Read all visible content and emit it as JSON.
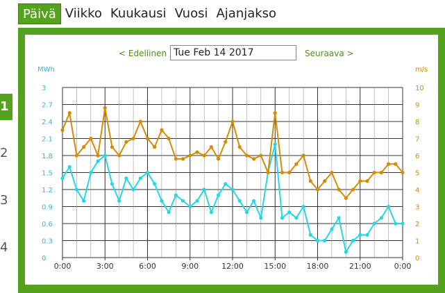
{
  "tabs": [
    {
      "label": "Päivä",
      "active": true
    },
    {
      "label": "Viikko",
      "active": false
    },
    {
      "label": "Kuukausi",
      "active": false
    },
    {
      "label": "Vuosi",
      "active": false
    },
    {
      "label": "Ajanjakso",
      "active": false
    }
  ],
  "side_numbers": [
    "1",
    "2",
    "3",
    "4"
  ],
  "nav": {
    "prev_label": "< Edellinen",
    "next_label": "Seuraava >",
    "date_value": "Tue Feb 14 2017"
  },
  "colors": {
    "accent": "#55a31c",
    "series_energy": "#1fd9e6",
    "series_wind": "#d88a00",
    "left_axis": "#3bb3d6",
    "right_axis": "#d88a00"
  },
  "chart_data": {
    "type": "line",
    "xlabel": "",
    "x_ticks": [
      "0:00",
      "3:00",
      "6:00",
      "9:00",
      "12:00",
      "15:00",
      "18:00",
      "21:00",
      "0:00"
    ],
    "xlim": [
      0,
      24
    ],
    "y_left": {
      "unit": "MWh",
      "ticks": [
        "0",
        "0.3",
        "0.6",
        "0.9",
        "1.2",
        "1.5",
        "1.8",
        "2.1",
        "2.4",
        "2.7",
        "3"
      ],
      "range": [
        0,
        3
      ]
    },
    "y_right": {
      "unit": "m/s",
      "ticks": [
        "0",
        "1",
        "2",
        "3",
        "4",
        "5",
        "6",
        "7",
        "8",
        "9",
        "10"
      ],
      "range": [
        0,
        10
      ]
    },
    "grid": true,
    "series": [
      {
        "axis": "left",
        "x": [
          0,
          0.5,
          1,
          1.5,
          2,
          2.5,
          3,
          3.5,
          4,
          4.5,
          5,
          5.5,
          6,
          6.5,
          7,
          7.5,
          8,
          8.5,
          9,
          9.5,
          10,
          10.5,
          11,
          11.5,
          12,
          12.5,
          13,
          13.5,
          14,
          14.5,
          15,
          15.5,
          16,
          16.5,
          17,
          17.5,
          18,
          18.5,
          19,
          19.5,
          20,
          20.5,
          21,
          21.5,
          22,
          22.5,
          23,
          23.5,
          24
        ],
        "values": [
          1.4,
          1.6,
          1.2,
          1.0,
          1.5,
          1.7,
          1.8,
          1.3,
          1.0,
          1.4,
          1.2,
          1.4,
          1.5,
          1.3,
          1.0,
          0.8,
          1.1,
          1.0,
          0.9,
          1.0,
          1.2,
          0.8,
          1.1,
          1.3,
          1.2,
          1.0,
          0.8,
          1.0,
          0.7,
          1.5,
          2.0,
          0.7,
          0.8,
          0.7,
          0.9,
          0.4,
          0.3,
          0.3,
          0.5,
          0.7,
          0.1,
          0.3,
          0.4,
          0.4,
          0.6,
          0.7,
          0.9,
          0.6,
          0.6
        ]
      },
      {
        "axis": "right",
        "x": [
          0,
          0.5,
          1,
          1.5,
          2,
          2.5,
          3,
          3.5,
          4,
          4.5,
          5,
          5.5,
          6,
          6.5,
          7,
          7.5,
          8,
          8.5,
          9,
          9.5,
          10,
          10.5,
          11,
          11.5,
          12,
          12.5,
          13,
          13.5,
          14,
          14.5,
          15,
          15.5,
          16,
          16.5,
          17,
          17.5,
          18,
          18.5,
          19,
          19.5,
          20,
          20.5,
          21,
          21.5,
          22,
          22.5,
          23,
          23.5,
          24
        ],
        "values": [
          7.5,
          8.5,
          6.0,
          6.5,
          7.0,
          6.0,
          8.8,
          6.5,
          6.0,
          6.8,
          7.0,
          8.0,
          7.0,
          6.5,
          7.5,
          7.0,
          5.8,
          5.8,
          6.0,
          6.2,
          6.0,
          6.5,
          5.8,
          6.8,
          8.0,
          6.5,
          6.0,
          5.8,
          6.0,
          5.0,
          8.5,
          5.0,
          5.0,
          5.5,
          6.0,
          4.5,
          4.0,
          4.5,
          5.0,
          4.0,
          3.5,
          4.0,
          4.5,
          4.5,
          5.0,
          5.0,
          5.5,
          5.5,
          5.0
        ]
      }
    ]
  }
}
